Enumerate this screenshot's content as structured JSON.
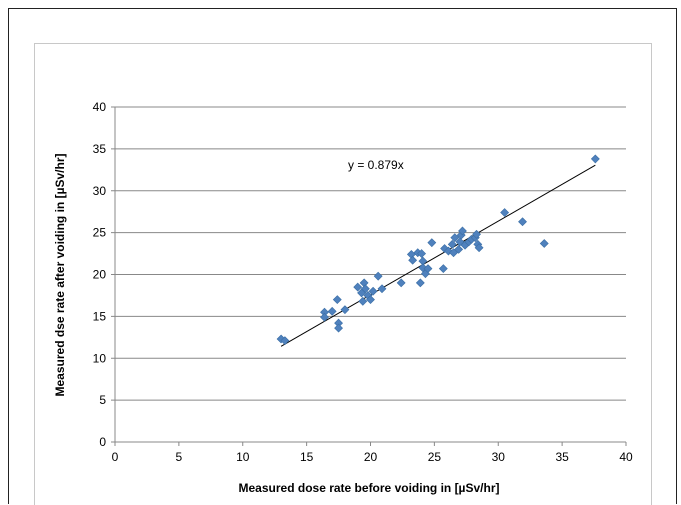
{
  "chart_data": {
    "type": "scatter",
    "xlabel": "Measured dose rate before voiding in [µSv/hr]",
    "ylabel": "Measured dse rate after voiding in [µSv/hr]",
    "xlim": [
      0,
      40
    ],
    "ylim": [
      0,
      40
    ],
    "x_ticks": [
      0,
      5,
      10,
      15,
      20,
      25,
      30,
      35,
      40
    ],
    "y_ticks": [
      0,
      5,
      10,
      15,
      20,
      25,
      30,
      35,
      40
    ],
    "grid": "horizontal",
    "marker": "diamond",
    "marker_color": "#4f81bd",
    "trendline": {
      "slope": 0.879,
      "x_range": [
        13.0,
        37.6
      ],
      "label": "y = 0.879x",
      "color": "#000000"
    },
    "series": [
      {
        "points": [
          [
            13.0,
            12.3
          ],
          [
            13.3,
            12.1
          ],
          [
            16.4,
            15.5
          ],
          [
            16.4,
            14.9
          ],
          [
            17.0,
            15.6
          ],
          [
            17.4,
            17.0
          ],
          [
            17.5,
            14.2
          ],
          [
            17.5,
            13.6
          ],
          [
            18.0,
            15.8
          ],
          [
            19.0,
            18.5
          ],
          [
            19.3,
            17.8
          ],
          [
            19.4,
            16.8
          ],
          [
            19.5,
            19.0
          ],
          [
            19.6,
            18.3
          ],
          [
            19.8,
            17.5
          ],
          [
            20.0,
            17.0
          ],
          [
            20.2,
            18.0
          ],
          [
            20.6,
            19.8
          ],
          [
            20.9,
            18.3
          ],
          [
            22.4,
            19.0
          ],
          [
            23.2,
            22.4
          ],
          [
            23.3,
            21.7
          ],
          [
            23.7,
            22.6
          ],
          [
            23.9,
            19.0
          ],
          [
            24.0,
            22.5
          ],
          [
            24.1,
            21.6
          ],
          [
            24.1,
            20.8
          ],
          [
            24.3,
            20.1
          ],
          [
            24.5,
            20.7
          ],
          [
            24.8,
            23.8
          ],
          [
            25.7,
            20.7
          ],
          [
            25.8,
            23.1
          ],
          [
            26.1,
            22.8
          ],
          [
            26.4,
            23.6
          ],
          [
            26.5,
            22.6
          ],
          [
            26.6,
            24.4
          ],
          [
            26.9,
            23.0
          ],
          [
            27.0,
            23.9
          ],
          [
            27.1,
            24.7
          ],
          [
            27.2,
            25.2
          ],
          [
            27.4,
            23.5
          ],
          [
            27.7,
            23.9
          ],
          [
            27.9,
            24.2
          ],
          [
            28.2,
            24.4
          ],
          [
            28.4,
            23.6
          ],
          [
            28.5,
            23.2
          ],
          [
            28.3,
            24.8
          ],
          [
            30.5,
            27.4
          ],
          [
            31.9,
            26.3
          ],
          [
            33.6,
            23.7
          ],
          [
            37.6,
            33.8
          ]
        ]
      }
    ]
  }
}
